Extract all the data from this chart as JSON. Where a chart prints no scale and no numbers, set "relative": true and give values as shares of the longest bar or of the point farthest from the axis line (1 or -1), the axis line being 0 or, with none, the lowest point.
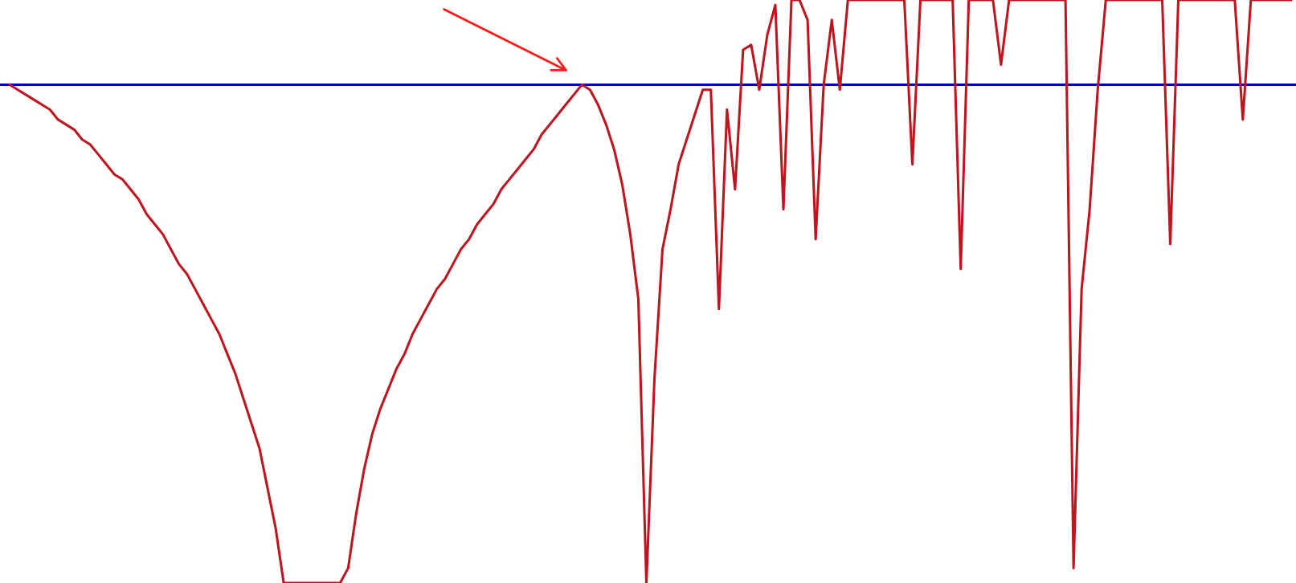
{
  "chart_data": {
    "type": "line",
    "relative": true,
    "legend": false,
    "marker": "none",
    "line_style": "solid",
    "categories": [
      null,
      null,
      null,
      null,
      null,
      null,
      null,
      null,
      null,
      null,
      null,
      null,
      null,
      null,
      null,
      null,
      null,
      null,
      null,
      null,
      null,
      null,
      null,
      null,
      null,
      null,
      null,
      null,
      null,
      null,
      null,
      null,
      null,
      null,
      null,
      null,
      null,
      null,
      null,
      null,
      null,
      null,
      null,
      null,
      null,
      null,
      null,
      null,
      null,
      null,
      null,
      null,
      null,
      null,
      null,
      null,
      null,
      null,
      null,
      null,
      null,
      null,
      null,
      null,
      null,
      null,
      null,
      null,
      null,
      null,
      null,
      null,
      null,
      null,
      null,
      null,
      null,
      null,
      null,
      null,
      null,
      null,
      null,
      null,
      null,
      null,
      null,
      null,
      null,
      null,
      null,
      null,
      null,
      null,
      null,
      null,
      null,
      null,
      null,
      null,
      null,
      null,
      null,
      null,
      null,
      null,
      null,
      null,
      null,
      null,
      null,
      null,
      null,
      null,
      null,
      null,
      null,
      null,
      null,
      null,
      null,
      null,
      null,
      null,
      null,
      null,
      null,
      null,
      null,
      null,
      null,
      null,
      null,
      null,
      null,
      null,
      null,
      null,
      null,
      null,
      null,
      null,
      null,
      null,
      null,
      null,
      null,
      null,
      null,
      null,
      null,
      null,
      null,
      null,
      null,
      null,
      null,
      null,
      null,
      null
    ],
    "series": [
      {
        "color": "#c0141e",
        "values": [
          0,
          -0.01,
          -0.02,
          -0.03,
          -0.04,
          -0.05,
          -0.07,
          -0.08,
          -0.09,
          -0.11,
          -0.12,
          -0.14,
          -0.16,
          -0.18,
          -0.19,
          -0.21,
          -0.23,
          -0.26,
          -0.28,
          -0.3,
          -0.33,
          -0.36,
          -0.38,
          -0.41,
          -0.44,
          -0.47,
          -0.5,
          -0.54,
          -0.58,
          -0.63,
          -0.68,
          -0.73,
          -0.81,
          -0.89,
          -1,
          -1,
          -1,
          -1,
          -1,
          -1,
          -1,
          -1,
          -0.97,
          -0.86,
          -0.77,
          -0.7,
          -0.65,
          -0.61,
          -0.57,
          -0.54,
          -0.5,
          -0.47,
          -0.44,
          -0.41,
          -0.39,
          -0.36,
          -0.33,
          -0.31,
          -0.28,
          -0.26,
          -0.24,
          -0.21,
          -0.19,
          -0.17,
          -0.15,
          -0.13,
          -0.1,
          -0.08,
          -0.06,
          -0.04,
          -0.02,
          0,
          -0.01,
          -0.04,
          -0.08,
          -0.13,
          -0.2,
          -0.3,
          -0.43,
          -1,
          -0.59,
          -0.33,
          -0.25,
          -0.16,
          -0.11,
          -0.06,
          -0.01,
          -0.01,
          -0.45,
          -0.05,
          -0.21,
          0.07,
          0.08,
          -0.01,
          0.1,
          0.16,
          -0.25,
          0.17,
          0.17,
          0.13,
          -0.31,
          0,
          0.13,
          -0.01,
          0.17,
          0.17,
          0.17,
          0.17,
          0.17,
          0.17,
          0.17,
          0.17,
          -0.16,
          0.17,
          0.17,
          0.17,
          0.17,
          0.17,
          -0.37,
          0.17,
          0.17,
          0.17,
          0.17,
          0.04,
          0.17,
          0.17,
          0.17,
          0.17,
          0.17,
          0.17,
          0.17,
          0.17,
          -0.97,
          -0.41,
          -0.25,
          -0.01,
          0.17,
          0.17,
          0.17,
          0.17,
          0.17,
          0.17,
          0.17,
          0.17,
          -0.32,
          0.17,
          0.17,
          0.17,
          0.17,
          0.17,
          0.17,
          0.17,
          0.17,
          -0.07,
          0.17,
          0.17,
          0.17,
          0.17,
          0.17,
          0.17
        ]
      }
    ],
    "ref_lines": [
      {
        "axis": "y",
        "value": 0,
        "color": "#0000c0"
      }
    ]
  }
}
